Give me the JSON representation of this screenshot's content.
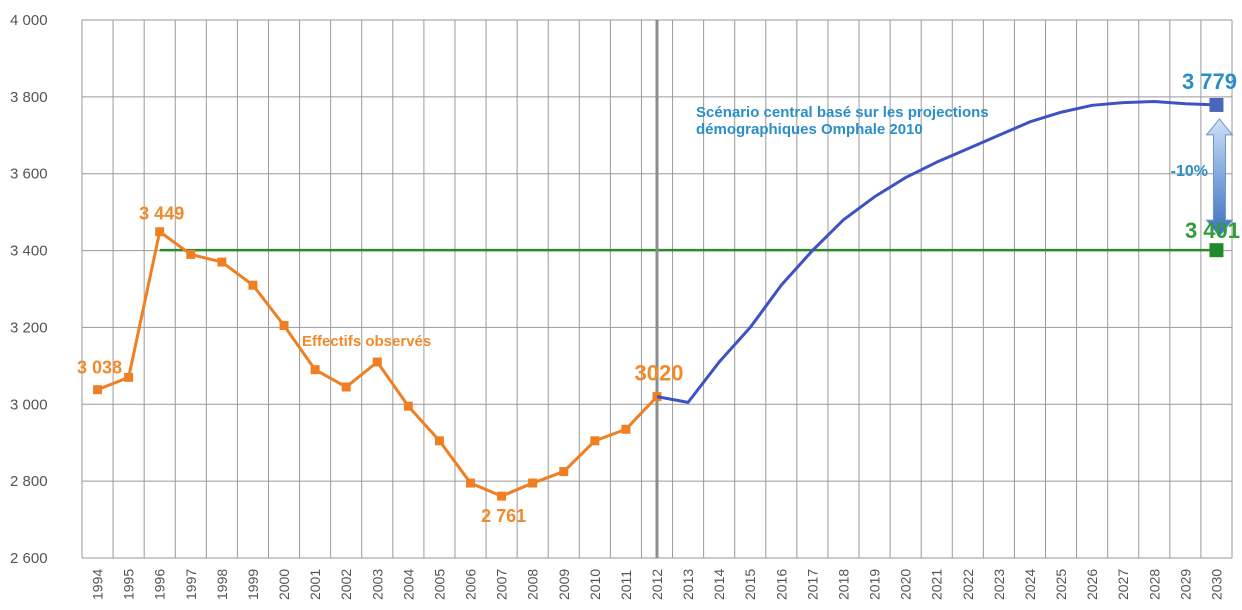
{
  "chart_data": {
    "type": "line",
    "x": [
      1994,
      1995,
      1996,
      1997,
      1998,
      1999,
      2000,
      2001,
      2002,
      2003,
      2004,
      2005,
      2006,
      2007,
      2008,
      2009,
      2010,
      2011,
      2012,
      2013,
      2014,
      2015,
      2016,
      2017,
      2018,
      2019,
      2020,
      2021,
      2022,
      2023,
      2024,
      2025,
      2026,
      2027,
      2028,
      2029,
      2030
    ],
    "x_tick_labels": [
      "1994",
      "1995",
      "1996",
      "1997",
      "1998",
      "1999",
      "2000",
      "2001",
      "2002",
      "2003",
      "2004",
      "2005",
      "2006",
      "2007",
      "2008",
      "2009",
      "2010",
      "2011",
      "2012",
      "2013",
      "2014",
      "2015",
      "2016",
      "2017",
      "2018",
      "2019",
      "2020",
      "2021",
      "2022",
      "2023",
      "2024",
      "2025",
      "2026",
      "2027",
      "2028",
      "2029",
      "2030"
    ],
    "ylim": [
      2600,
      4000
    ],
    "y_ticks": [
      2600,
      2800,
      3000,
      3200,
      3400,
      3600,
      3800,
      4000
    ],
    "y_tick_labels": [
      "2 600",
      "2 800",
      "3 000",
      "3 200",
      "3 400",
      "3 600",
      "3 800",
      "4 000"
    ],
    "grid": true,
    "series": [
      {
        "name": "Effectifs observés",
        "color": "#f07f23",
        "marker": "square",
        "x": [
          1994,
          1995,
          1996,
          1997,
          1998,
          1999,
          2000,
          2001,
          2002,
          2003,
          2004,
          2005,
          2006,
          2007,
          2008,
          2009,
          2010,
          2011,
          2012
        ],
        "values": [
          3038,
          3070,
          3449,
          3390,
          3370,
          3310,
          3205,
          3090,
          3045,
          3110,
          2995,
          2905,
          2795,
          2761,
          2795,
          2825,
          2905,
          2935,
          3020
        ]
      },
      {
        "name": "Scénario central basé sur les projections démographiques Omphale 2010",
        "color": "#3d53c4",
        "marker": "none",
        "x": [
          2012,
          2013,
          2014,
          2015,
          2016,
          2017,
          2018,
          2019,
          2020,
          2021,
          2022,
          2023,
          2024,
          2025,
          2026,
          2027,
          2028,
          2029,
          2030
        ],
        "values": [
          3020,
          3005,
          3110,
          3200,
          3310,
          3400,
          3480,
          3540,
          3590,
          3630,
          3665,
          3700,
          3735,
          3760,
          3778,
          3785,
          3788,
          3782,
          3779
        ]
      }
    ],
    "reference_line": {
      "value": 3401,
      "color": "#2f8a2f"
    },
    "vertical_marker": {
      "x": 2012,
      "color": "#8c8c8c"
    },
    "annotations": {
      "start_value": "3 038",
      "peak_value": "3 449",
      "min_value": "2 761",
      "split_value": "3020",
      "observed_label": "Effectifs observés",
      "projection_label_line1": "Scénario central basé sur les projections",
      "projection_label_line2": "démographiques Omphale 2010",
      "end_projection_value": "3 779",
      "target_value": "3 401",
      "gap_label": "-10%"
    }
  }
}
